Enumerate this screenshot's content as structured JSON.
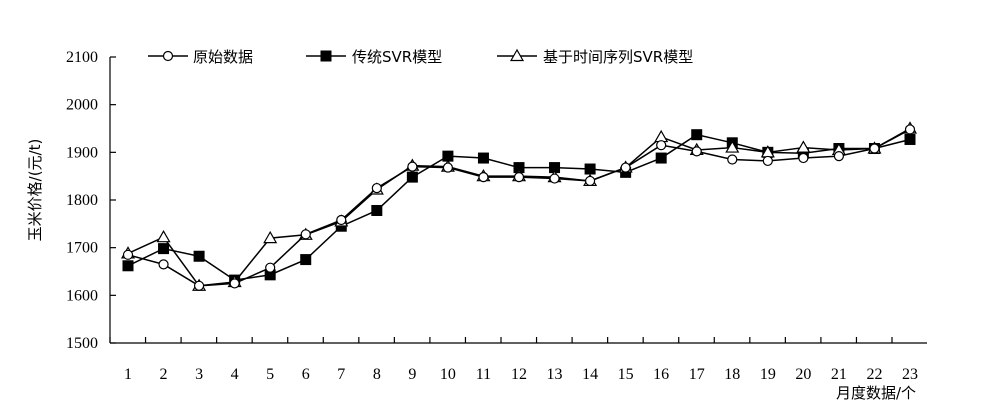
{
  "chart_data": {
    "type": "line",
    "xlabel": "月度数据/个",
    "ylabel": "玉米价格/(元/t)",
    "x": [
      1,
      2,
      3,
      4,
      5,
      6,
      7,
      8,
      9,
      10,
      11,
      12,
      13,
      14,
      15,
      16,
      17,
      18,
      19,
      20,
      21,
      22,
      23
    ],
    "ylim": [
      1500,
      2100
    ],
    "yticks": [
      1500,
      1600,
      1700,
      1800,
      1900,
      2000,
      2100
    ],
    "legend_position": "top",
    "grid": false,
    "series": [
      {
        "name": "原始数据",
        "marker": "circle",
        "values": [
          1685,
          1665,
          1620,
          1625,
          1658,
          1728,
          1758,
          1825,
          1870,
          1868,
          1848,
          1848,
          1845,
          1840,
          1868,
          1915,
          1902,
          1885,
          1882,
          1888,
          1892,
          1908,
          1948
        ]
      },
      {
        "name": "传统SVR模型",
        "marker": "square",
        "values": [
          1662,
          1698,
          1682,
          1632,
          1643,
          1675,
          1745,
          1778,
          1848,
          1892,
          1888,
          1868,
          1868,
          1865,
          1858,
          1888,
          1937,
          1920,
          1900,
          1898,
          1908,
          1908,
          1927
        ]
      },
      {
        "name": "基于时间序列SVR模型",
        "marker": "triangle",
        "values": [
          1688,
          1722,
          1620,
          1628,
          1720,
          1727,
          1755,
          1822,
          1872,
          1870,
          1850,
          1850,
          1848,
          1840,
          1868,
          1932,
          1905,
          1910,
          1900,
          1910,
          1905,
          1908,
          1950
        ]
      }
    ]
  }
}
